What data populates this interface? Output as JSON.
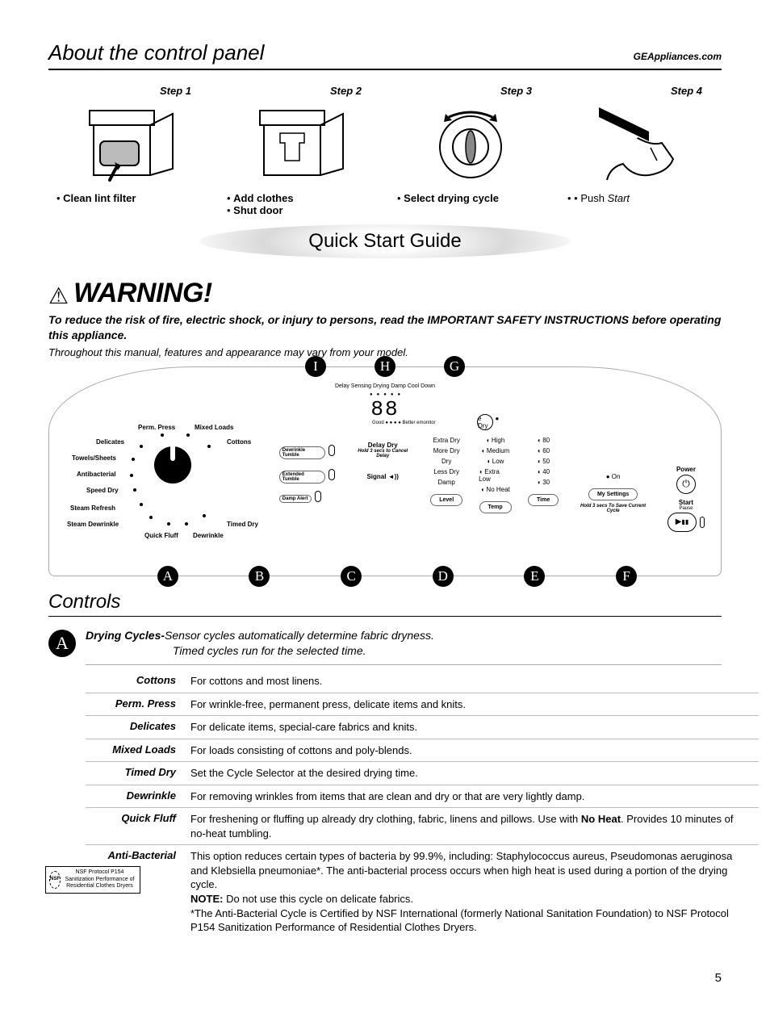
{
  "header": {
    "title": "About the control panel",
    "url": "GEAppliances.com"
  },
  "steps": [
    {
      "label": "Step 1",
      "captions": [
        "Clean lint filter"
      ]
    },
    {
      "label": "Step 2",
      "captions": [
        "Add clothes",
        "Shut door"
      ]
    },
    {
      "label": "Step 3",
      "captions": [
        "Select drying cycle"
      ]
    },
    {
      "label": "Step 4",
      "captions_html": "• Push <em>Start</em>"
    }
  ],
  "quick_start": "Quick Start Guide",
  "warning": {
    "heading": "WARNING!",
    "body": "To reduce the risk of fire, electric shock, or injury to persons, read the IMPORTANT SAFETY INSTRUCTIONS before operating this appliance.",
    "note": "Throughout this manual, features and appearance may vary from your model."
  },
  "panel": {
    "top_callouts": [
      "I",
      "H",
      "G"
    ],
    "bottom_callouts": [
      "A",
      "B",
      "C",
      "D",
      "E",
      "F"
    ],
    "status_leds": "Delay  Sensing  Drying  Damp  Cool Down",
    "display": "88",
    "emonitor_line": "Good ●  ● ●  ● Better   emonitor",
    "edry": "e Dry",
    "dial_labels": [
      "Perm. Press",
      "Mixed Loads",
      "Cottons",
      "Delicates",
      "Towels/Sheets",
      "Antibacterial",
      "Speed Dry",
      "Steam Refresh",
      "Steam Dewrinkle",
      "Quick Fluff",
      "Dewrinkle",
      "Timed Dry"
    ],
    "option_buttons": [
      "Dewrinkle Tumble",
      "Extended Tumble",
      "Damp Alert"
    ],
    "delay": {
      "label": "Delay Dry",
      "sub": "Hold 3 secs to Cancel Delay"
    },
    "signal": "Signal ◄))",
    "level": {
      "items": [
        "Extra Dry",
        "More Dry",
        "Dry",
        "Less Dry",
        "Damp"
      ],
      "btn": "Level"
    },
    "temp": {
      "items": [
        "High",
        "Medium",
        "Low",
        "Extra Low",
        "No Heat"
      ],
      "btn": "Temp"
    },
    "time": {
      "items": [
        "80",
        "60",
        "50",
        "40",
        "30"
      ],
      "btn": "Time"
    },
    "mysettings": {
      "on": "On",
      "btn": "My Settings",
      "sub": "Hold 3 secs To Save Current Cycle"
    },
    "power": "Power",
    "start": "Start",
    "pause": "Pause"
  },
  "controls_heading": "Controls",
  "section_a": {
    "letter": "A",
    "intro_title": "Drying Cycles-",
    "intro_line1": "Sensor cycles automatically determine fabric dryness.",
    "intro_line2": "Timed cycles run for the selected time."
  },
  "cycles": [
    {
      "name": "Cottons",
      "desc": "For cottons and most linens."
    },
    {
      "name": "Perm. Press",
      "desc": "For wrinkle-free, permanent press, delicate items and knits."
    },
    {
      "name": "Delicates",
      "desc": "For delicate items, special-care fabrics and knits."
    },
    {
      "name": "Mixed Loads",
      "desc": "For loads consisting of cottons and poly-blends."
    },
    {
      "name": "Timed Dry",
      "desc": "Set the Cycle Selector at the desired drying time."
    },
    {
      "name": "Dewrinkle",
      "desc": "For removing wrinkles from items that are clean and dry or that are very lightly damp."
    },
    {
      "name": "Quick Fluff",
      "desc": "For freshening or fluffing up already dry clothing, fabric, linens and pillows. Use with <b>No Heat</b>. Provides 10 minutes of no-heat tumbling."
    },
    {
      "name": "Anti-Bacterial",
      "desc": "This option reduces certain types of bacteria by 99.9%, including: Staphylococcus aureus, Pseudomonas aeruginosa and Klebsiella pneumoniae*. The anti-bacterial process occurs when high heat is used during a portion of the drying cycle.<br><b>NOTE:</b> Do not use this cycle on delicate fabrics.<br>*The Anti-Bacterial Cycle is Certified by NSF International (formerly National Sanitation Foundation) to NSF Protocol P154 Sanitization Performance of Residential Clothes Dryers.",
      "nsf": true
    }
  ],
  "nsf": {
    "badge": "NSF",
    "text": "NSF Protocol P154 Sanitization Performance of Residential Clothes Dryers"
  },
  "page_num": "5",
  "colors": {
    "text": "#000000",
    "bg": "#ffffff",
    "rule": "#bbbbbb"
  }
}
